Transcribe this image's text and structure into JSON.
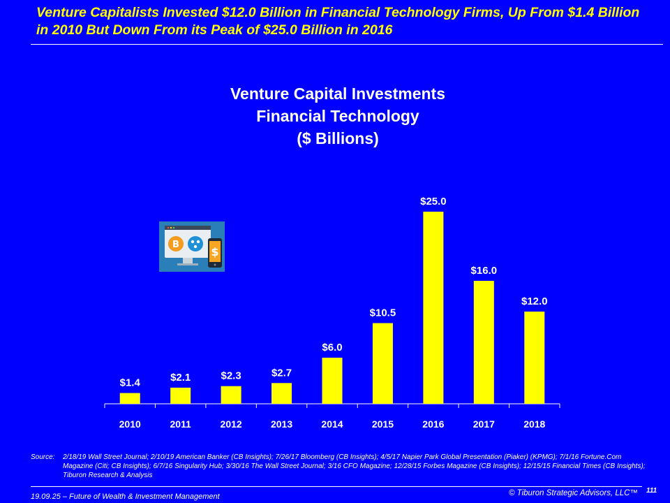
{
  "slide": {
    "title": "Venture Capitalists Invested $12.0 Billion in Financial Technology Firms, Up From $1.4 Billion in 2010 But Down From its Peak of $25.0 Billion in 2016"
  },
  "chart_data": {
    "type": "bar",
    "title_lines": [
      "Venture Capital Investments",
      "Financial Technology",
      "($ Billions)"
    ],
    "categories": [
      "2010",
      "2011",
      "2012",
      "2013",
      "2014",
      "2015",
      "2016",
      "2017",
      "2018"
    ],
    "values": [
      1.4,
      2.1,
      2.3,
      2.7,
      6.0,
      10.5,
      25.0,
      16.0,
      12.0
    ],
    "data_labels": [
      "$1.4",
      "$2.1",
      "$2.3",
      "$2.7",
      "$6.0",
      "$10.5",
      "$25.0",
      "$16.0",
      "$12.0"
    ],
    "xlabel": "",
    "ylabel": "",
    "ylim": [
      0,
      25
    ],
    "grid": false,
    "bar_color": "#ffff00"
  },
  "icon": "fintech-icon",
  "source": {
    "label": "Source:",
    "text": "2/18/19 Wall Street Journal; 2/10/19 American Banker (CB Insights); 7/26/17 Bloomberg (CB Insights); 4/5/17 Napier Park Global Presentation (Piaker) (KPMG); 7/1/16 Fortune.Com Magazine (Citi; CB Insights); 6/7/16 Singularity Hub; 3/30/16 The Wall Street Journal; 3/16 CFO Magazine; 12/28/15 Forbes Magazine (CB Insights); 12/15/15 Financial Times (CB Insights); Tiburon Research & Analysis"
  },
  "footer": {
    "left": "19.09.25 – Future of Wealth & Investment Management",
    "right": "© Tiburon Strategic Advisors, LLC™",
    "page": "111"
  },
  "colors": {
    "background": "#0000ff",
    "accent": "#ffff00",
    "text": "#ffffff"
  }
}
